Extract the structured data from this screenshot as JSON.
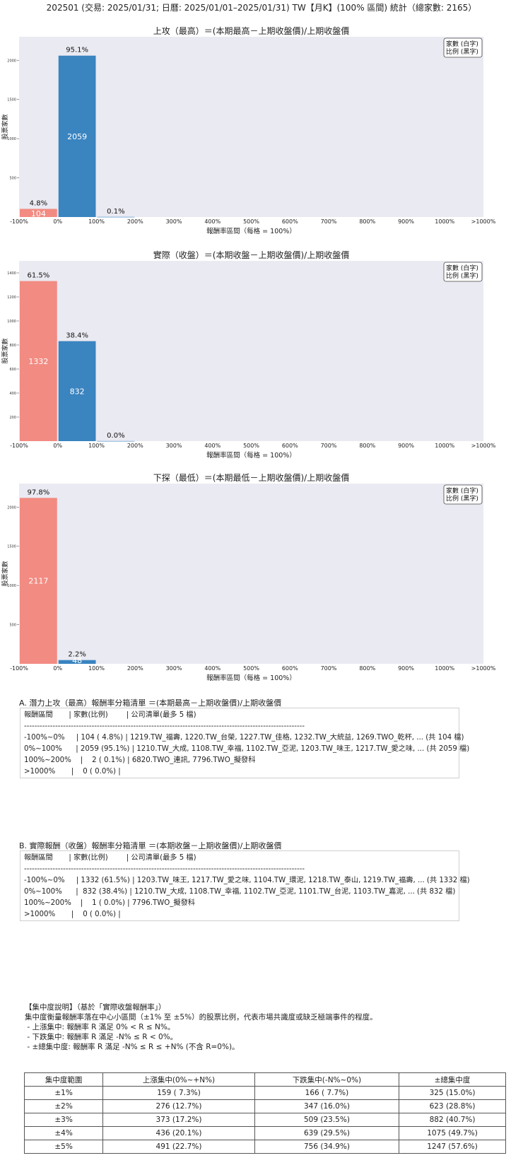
{
  "page": {
    "title": "202501 (交易: 2025/01/31; 日曆: 2025/01/01–2025/01/31) TW【月K】(100% 區間) 統計（總家數: 2165）"
  },
  "chart_data": [
    {
      "type": "bar",
      "title": "上攻（最高）＝(本期最高－上期收盤價)/上期收盤價",
      "xlabel": "報酬率區間（每格 = 100%）",
      "ylabel": "股票家數",
      "legend": "家數 (白字)\n比例 (黑字)",
      "legend_lines": [
        "家數 (白字)",
        "比例 (黑字)"
      ],
      "legend_placement": "top-right",
      "xticks": [
        "-100%",
        "0%",
        "100%",
        "200%",
        "300%",
        "400%",
        "500%",
        "600%",
        "700%",
        "800%",
        "900%",
        "1000%",
        ">1000%"
      ],
      "yticks": [
        500,
        1000,
        1500,
        2000
      ],
      "ylim": [
        0,
        2300
      ],
      "categories": [
        "-100%~0%",
        "0%~100%",
        "100%~200%"
      ],
      "values": [
        104,
        2059,
        2
      ],
      "percent_labels": [
        "4.8%",
        "95.1%",
        "0.1%"
      ],
      "count_labels": [
        "104",
        "2059",
        ""
      ],
      "colors": [
        "#f28b82",
        "#3a84c0",
        "#3a84c0"
      ],
      "grid": false
    },
    {
      "type": "bar",
      "title": "實際（收盤）＝(本期收盤－上期收盤價)/上期收盤價",
      "xlabel": "報酬率區間（每格 = 100%）",
      "ylabel": "股票家數",
      "legend": "家數 (白字)\n比例 (黑字)",
      "legend_lines": [
        "家數 (白字)",
        "比例 (黑字)"
      ],
      "legend_placement": "top-right",
      "xticks": [
        "-100%",
        "0%",
        "100%",
        "200%",
        "300%",
        "400%",
        "500%",
        "600%",
        "700%",
        "800%",
        "900%",
        "1000%",
        ">1000%"
      ],
      "yticks": [
        200,
        400,
        600,
        800,
        1000,
        1200,
        1400
      ],
      "ylim": [
        0,
        1500
      ],
      "categories": [
        "-100%~0%",
        "0%~100%",
        "100%~200%"
      ],
      "values": [
        1332,
        832,
        1
      ],
      "percent_labels": [
        "61.5%",
        "38.4%",
        "0.0%"
      ],
      "count_labels": [
        "1332",
        "832",
        ""
      ],
      "colors": [
        "#f28b82",
        "#3a84c0",
        "#3a84c0"
      ],
      "grid": false
    },
    {
      "type": "bar",
      "title": "下探（最低）＝(本期最低－上期收盤價)/上期收盤價",
      "xlabel": "報酬率區間（每格 = 100%）",
      "ylabel": "股票家數",
      "legend": "家數 (白字)\n比例 (黑字)",
      "legend_lines": [
        "家數 (白字)",
        "比例 (黑字)"
      ],
      "legend_placement": "top-right",
      "xticks": [
        "-100%",
        "0%",
        "100%",
        "200%",
        "300%",
        "400%",
        "500%",
        "600%",
        "700%",
        "800%",
        "900%",
        "1000%",
        ">1000%"
      ],
      "yticks": [
        500,
        1000,
        1500,
        2000
      ],
      "ylim": [
        0,
        2300
      ],
      "categories": [
        "-100%~0%",
        "0%~100%"
      ],
      "values": [
        2117,
        48
      ],
      "percent_labels": [
        "97.8%",
        "2.2%"
      ],
      "count_labels": [
        "2117",
        "48"
      ],
      "colors": [
        "#f28b82",
        "#3a84c0"
      ],
      "grid": false
    }
  ],
  "listA": {
    "title": "A. 潛力上攻（最高）報酬率分箱清單 ＝(本期最高－上期收盤價)/上期收盤價",
    "lines": [
      "報酬區間       | 家數(比例)        | 公司清單(最多 5 檔)",
      "------------------------------------------------------------------------------------------------------------",
      "-100%~0%     | 104 ( 4.8%) | 1219.TW_福壽, 1220.TW_台榮, 1227.TW_佳格, 1232.TW_大統益, 1269.TWO_乾杯, ... (共 104 檔)",
      "0%~100%      | 2059 (95.1%) | 1210.TW_大成, 1108.TW_幸福, 1102.TW_亞泥, 1203.TW_味王, 1217.TW_愛之味, ... (共 2059 檔)",
      "100%~200%    |    2 ( 0.1%) | 6820.TWO_連訊, 7796.TWO_擬發科",
      ">1000%       |    0 ( 0.0%) |"
    ]
  },
  "listB": {
    "title": "B. 實際報酬（收盤）報酬率分箱清單 ＝(本期收盤－上期收盤價)/上期收盤價",
    "lines": [
      "報酬區間       | 家數(比例)        | 公司清單(最多 5 檔)",
      "------------------------------------------------------------------------------------------------------------",
      "-100%~0%     | 1332 (61.5%) | 1203.TW_味王, 1217.TW_愛之味, 1104.TW_環泥, 1218.TW_泰山, 1219.TW_福壽, ... (共 1332 檔)",
      "0%~100%      |  832 (38.4%) | 1210.TW_大成, 1108.TW_幸福, 1102.TW_亞泥, 1101.TW_台泥, 1103.TW_嘉泥, ... (共 832 檔)",
      "100%~200%    |    1 ( 0.0%) | 7796.TWO_擬發科",
      ">1000%       |    0 ( 0.0%) |"
    ]
  },
  "note": {
    "lines": [
      "【集中度說明】（基於「實際收盤報酬率」）",
      "集中度衡量報酬率落在中心小區間（±1% 至 ±5%）的股票比例，代表市場共識度或缺乏極端事件的程度。",
      " - 上漲集中: 報酬率 R 滿足 0% < R ≤ N%。",
      " - 下跌集中: 報酬率 R 滿足 -N% ≤ R < 0%。",
      " - ±總集中度: 報酬率 R 滿足 -N% ≤ R ≤ +N% (不含 R=0%)。"
    ]
  },
  "table": {
    "headers": [
      "集中度範圍",
      "上漲集中(0%~+N%)",
      "下跌集中(-N%~0%)",
      "±總集中度"
    ],
    "rows": [
      [
        "±1%",
        "159 ( 7.3%)",
        "166 ( 7.7%)",
        "325 (15.0%)"
      ],
      [
        "±2%",
        "276 (12.7%)",
        "347 (16.0%)",
        "623 (28.8%)"
      ],
      [
        "±3%",
        "373 (17.2%)",
        "509 (23.5%)",
        "882 (40.7%)"
      ],
      [
        "±4%",
        "436 (20.1%)",
        "639 (29.5%)",
        "1075 (49.7%)"
      ],
      [
        "±5%",
        "491 (22.7%)",
        "756 (34.9%)",
        "1247 (57.6%)"
      ]
    ]
  }
}
